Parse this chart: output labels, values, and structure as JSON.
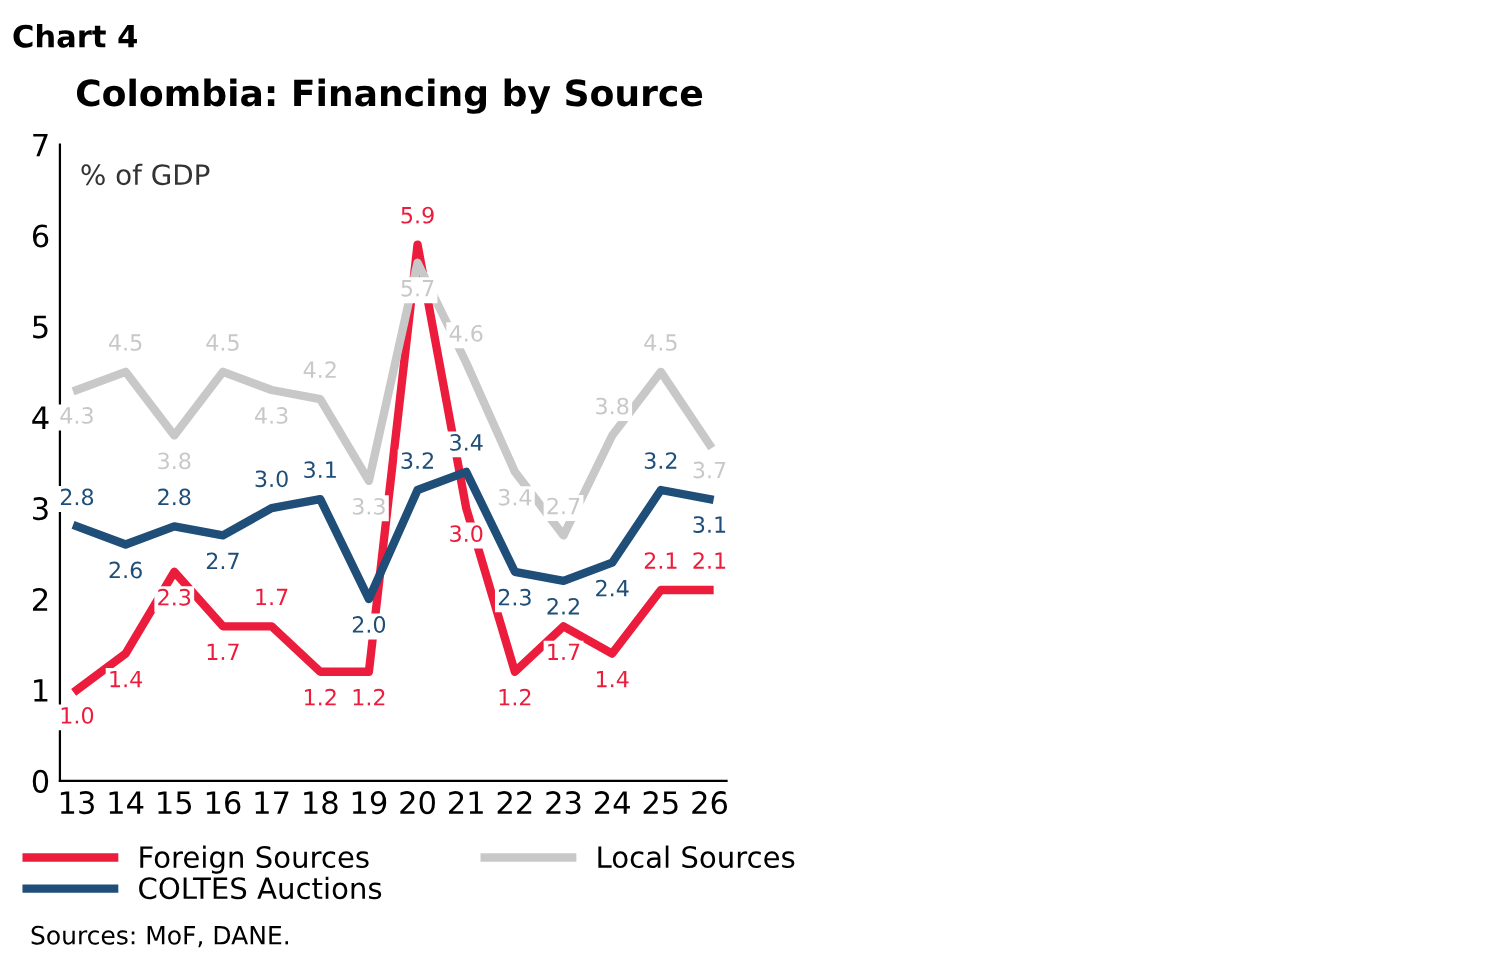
{
  "chart_data": {
    "type": "line",
    "title": "Colombia: Financing by Source",
    "ylabel": "% of GDP",
    "categories": [
      "13",
      "14",
      "15",
      "16",
      "17",
      "18",
      "19",
      "20",
      "21",
      "22",
      "23",
      "24",
      "25",
      "26"
    ],
    "series": [
      {
        "name": "Foreign Sources",
        "color": "#ec1c3c",
        "values": [
          1.0,
          1.4,
          2.3,
          1.7,
          1.7,
          1.2,
          1.2,
          5.9,
          3.0,
          1.2,
          1.7,
          1.4,
          2.1,
          2.1
        ],
        "value_labels": [
          "1.0",
          "1.4",
          "2.3",
          "1.7",
          "1.7",
          "1.2",
          "1.2",
          "5.9",
          "3.0",
          "1.2",
          "1.7",
          "1.4",
          "2.1",
          "2.1"
        ]
      },
      {
        "name": "Local Sources",
        "color": "#c8c8c8",
        "values": [
          4.3,
          4.5,
          3.8,
          4.5,
          4.3,
          4.2,
          3.3,
          5.7,
          4.6,
          3.4,
          2.7,
          3.8,
          4.5,
          3.7
        ],
        "value_labels": [
          "4.3",
          "4.5",
          "3.8",
          "4.5",
          "4.3",
          "4.2",
          "3.3",
          "5.7",
          "4.6",
          "3.4",
          "2.7",
          "3.8",
          "4.5",
          "3.7"
        ]
      },
      {
        "name": "COLTES Auctions",
        "color": "#1f4e79",
        "values": [
          2.8,
          2.6,
          2.8,
          2.7,
          3.0,
          3.1,
          2.0,
          3.2,
          3.4,
          2.3,
          2.2,
          2.4,
          3.2,
          3.1
        ],
        "value_labels": [
          "2.8",
          "2.6",
          "2.8",
          "2.7",
          "3.0",
          "3.1",
          "2.0",
          "3.2",
          "3.4",
          "2.3",
          "2.2",
          "2.4",
          "3.2",
          "3.1"
        ]
      }
    ],
    "ylim": [
      0,
      7
    ],
    "yticks": [
      0,
      1,
      2,
      3,
      4,
      5,
      6,
      7
    ],
    "grid": false,
    "legend": "bottom",
    "marker": "none",
    "line_style": "solid",
    "annotations": [
      "Chart 4",
      "Sources: MoF, DANE."
    ]
  }
}
